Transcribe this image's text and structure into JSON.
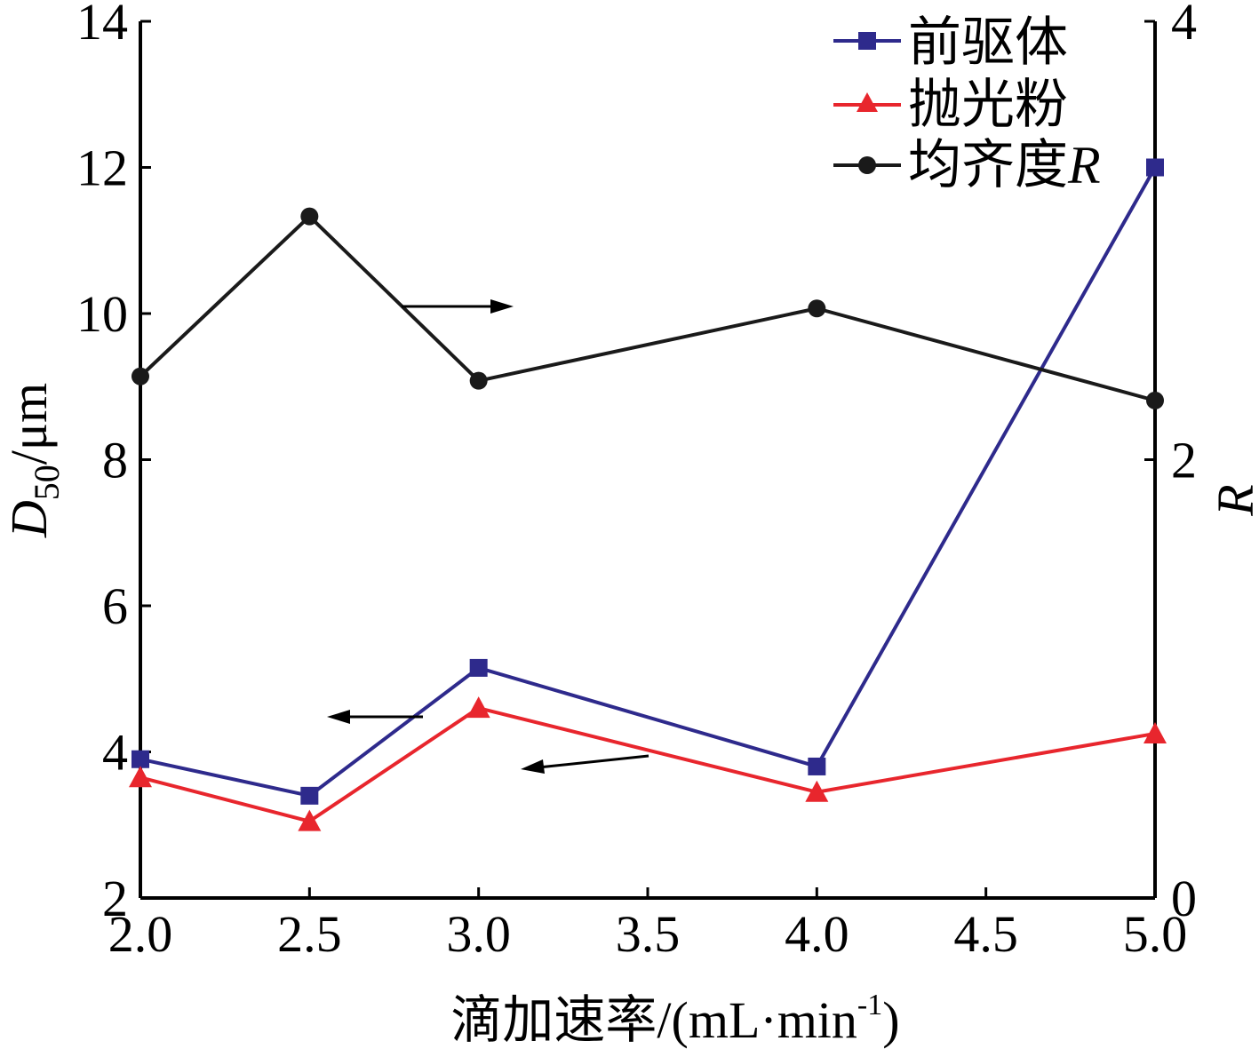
{
  "chart_data": {
    "type": "line",
    "x": [
      2.0,
      2.5,
      3.0,
      4.0,
      5.0
    ],
    "xlim": [
      2.0,
      5.0
    ],
    "xticks": [
      2.0,
      2.5,
      3.0,
      3.5,
      4.0,
      4.5,
      5.0
    ],
    "xtick_labels": [
      "2.0",
      "2.5",
      "3.0",
      "3.5",
      "4.0",
      "4.5",
      "5.0"
    ],
    "ylim_left": [
      2,
      14
    ],
    "yticks_left": [
      2,
      4,
      6,
      8,
      10,
      12,
      14
    ],
    "ytick_labels_left": [
      "2",
      "4",
      "6",
      "8",
      "10",
      "12",
      "14"
    ],
    "ylim_right": [
      0,
      4
    ],
    "yticks_right": [
      0,
      2,
      4
    ],
    "ytick_labels_right": [
      "0",
      "2",
      "4"
    ],
    "xlabel": "滴加速率/(mL·min",
    "xlabel_sup": "-1",
    "xlabel_close": ")",
    "ylabel_left_main": "D",
    "ylabel_left_sub": "50",
    "ylabel_left_unit": "/μm",
    "ylabel_right": "R",
    "legend_position": "top-right",
    "series": [
      {
        "name": "前驱体",
        "axis": "left",
        "marker": "square",
        "color": "#2e2a8c",
        "values": [
          3.9,
          3.4,
          5.15,
          3.8,
          12.0
        ]
      },
      {
        "name": "抛光粉",
        "axis": "left",
        "marker": "triangle",
        "color": "#e8262d",
        "values": [
          3.65,
          3.05,
          4.6,
          3.45,
          4.25
        ]
      },
      {
        "name": "均齐度",
        "name_suffix": "R",
        "axis": "right",
        "marker": "circle",
        "color": "#1a1a1a",
        "values": [
          2.38,
          3.11,
          2.36,
          2.69,
          2.27
        ]
      }
    ]
  }
}
